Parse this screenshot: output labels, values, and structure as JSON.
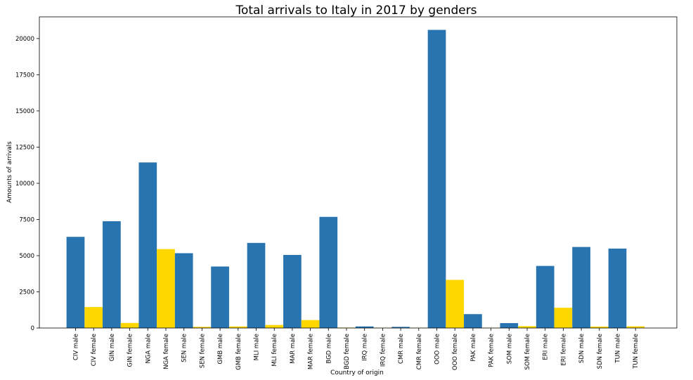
{
  "chart_data": {
    "type": "bar",
    "title": "Total arrivals to Italy in 2017 by genders",
    "xlabel": "Country of origin",
    "ylabel": "Amounts of arrivals",
    "ylim": [
      0,
      21500
    ],
    "yticks": [
      0,
      2500,
      5000,
      7500,
      10000,
      12500,
      15000,
      17500,
      20000
    ],
    "grid": false,
    "colors": {
      "male": "#2874b0",
      "female": "#ffd700"
    },
    "categories": [
      "CIV male",
      "CIV female",
      "GIN male",
      "GIN female",
      "NGA male",
      "NGA female",
      "SEN male",
      "SEN female",
      "GMB male",
      "GMB female",
      "MLI male",
      "MLI female",
      "MAR male",
      "MAR female",
      "BGD male",
      "BGD female",
      "IRQ male",
      "IRQ female",
      "CMR male",
      "CMR female",
      "OOO male",
      "OOO female",
      "PAK male",
      "PAK female",
      "SOM male",
      "SOM female",
      "ERI male",
      "ERI female",
      "SDN male",
      "SDN female",
      "TUN male",
      "TUN female"
    ],
    "values": [
      6300,
      1450,
      7380,
      350,
      11440,
      5450,
      5170,
      80,
      4250,
      110,
      5880,
      210,
      5050,
      550,
      7680,
      30,
      110,
      20,
      80,
      20,
      20600,
      3330,
      960,
      20,
      340,
      130,
      4290,
      1400,
      5600,
      100,
      5490,
      120
    ],
    "genders": [
      "male",
      "female",
      "male",
      "female",
      "male",
      "female",
      "male",
      "female",
      "male",
      "female",
      "male",
      "female",
      "male",
      "female",
      "male",
      "female",
      "male",
      "female",
      "male",
      "female",
      "male",
      "female",
      "male",
      "female",
      "male",
      "female",
      "male",
      "female",
      "male",
      "female",
      "male",
      "female"
    ]
  }
}
